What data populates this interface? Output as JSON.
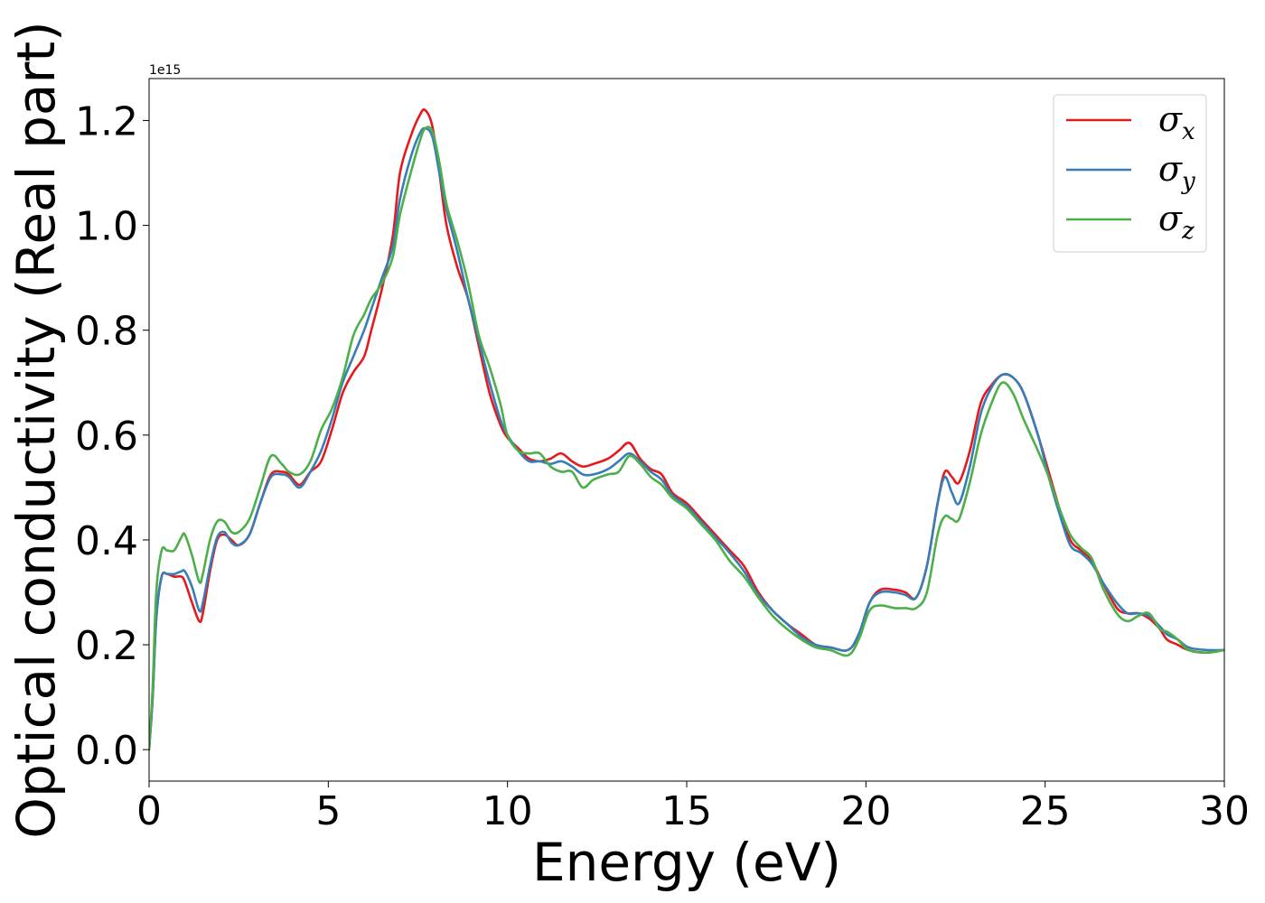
{
  "chart_data": {
    "type": "line",
    "title": "",
    "xlabel": "Energy (eV)",
    "ylabel": "Optical conductivity (Real part)",
    "y_offset_text": "1e15",
    "xlim": [
      0,
      30
    ],
    "ylim": [
      -0.06,
      1.28
    ],
    "xticks": [
      0,
      5,
      10,
      15,
      20,
      25,
      30
    ],
    "xtick_labels": [
      "0",
      "5",
      "10",
      "15",
      "20",
      "25",
      "30"
    ],
    "yticks": [
      0.0,
      0.2,
      0.4,
      0.6,
      0.8,
      1.0,
      1.2
    ],
    "ytick_labels": [
      "0.0",
      "0.2",
      "0.4",
      "0.6",
      "0.8",
      "1.0",
      "1.2"
    ],
    "grid": false,
    "legend": "top-right",
    "series": [
      {
        "name": "σx",
        "label_base": "σ",
        "label_sub": "x",
        "color": "#e41a1c",
        "points": [
          [
            0,
            0
          ],
          [
            0.1,
            0.1
          ],
          [
            0.2,
            0.25
          ],
          [
            0.35,
            0.33
          ],
          [
            0.5,
            0.335
          ],
          [
            0.7,
            0.33
          ],
          [
            0.9,
            0.33
          ],
          [
            1.0,
            0.32
          ],
          [
            1.2,
            0.28
          ],
          [
            1.4,
            0.245
          ],
          [
            1.5,
            0.26
          ],
          [
            1.7,
            0.34
          ],
          [
            1.9,
            0.4
          ],
          [
            2.1,
            0.41
          ],
          [
            2.3,
            0.4
          ],
          [
            2.5,
            0.39
          ],
          [
            2.8,
            0.41
          ],
          [
            3.1,
            0.47
          ],
          [
            3.4,
            0.525
          ],
          [
            3.7,
            0.53
          ],
          [
            3.9,
            0.525
          ],
          [
            4.2,
            0.505
          ],
          [
            4.5,
            0.53
          ],
          [
            4.8,
            0.55
          ],
          [
            5.1,
            0.61
          ],
          [
            5.4,
            0.68
          ],
          [
            5.7,
            0.72
          ],
          [
            6.0,
            0.75
          ],
          [
            6.2,
            0.8
          ],
          [
            6.5,
            0.88
          ],
          [
            6.8,
            0.98
          ],
          [
            7.0,
            1.1
          ],
          [
            7.3,
            1.17
          ],
          [
            7.55,
            1.21
          ],
          [
            7.7,
            1.22
          ],
          [
            7.9,
            1.19
          ],
          [
            8.1,
            1.1
          ],
          [
            8.3,
            1.0
          ],
          [
            8.6,
            0.92
          ],
          [
            8.9,
            0.86
          ],
          [
            9.2,
            0.77
          ],
          [
            9.5,
            0.68
          ],
          [
            9.8,
            0.62
          ],
          [
            10.0,
            0.595
          ],
          [
            10.3,
            0.575
          ],
          [
            10.6,
            0.555
          ],
          [
            10.9,
            0.55
          ],
          [
            11.2,
            0.555
          ],
          [
            11.5,
            0.565
          ],
          [
            11.8,
            0.55
          ],
          [
            12.1,
            0.54
          ],
          [
            12.4,
            0.545
          ],
          [
            12.8,
            0.555
          ],
          [
            13.1,
            0.57
          ],
          [
            13.4,
            0.585
          ],
          [
            13.7,
            0.555
          ],
          [
            14.0,
            0.535
          ],
          [
            14.3,
            0.525
          ],
          [
            14.6,
            0.49
          ],
          [
            15.0,
            0.47
          ],
          [
            15.4,
            0.44
          ],
          [
            15.8,
            0.41
          ],
          [
            16.2,
            0.38
          ],
          [
            16.6,
            0.35
          ],
          [
            17.0,
            0.3
          ],
          [
            17.4,
            0.265
          ],
          [
            17.8,
            0.24
          ],
          [
            18.2,
            0.22
          ],
          [
            18.6,
            0.2
          ],
          [
            19.0,
            0.195
          ],
          [
            19.5,
            0.19
          ],
          [
            19.8,
            0.22
          ],
          [
            20.1,
            0.28
          ],
          [
            20.4,
            0.305
          ],
          [
            20.8,
            0.305
          ],
          [
            21.1,
            0.3
          ],
          [
            21.4,
            0.29
          ],
          [
            21.7,
            0.35
          ],
          [
            22.0,
            0.47
          ],
          [
            22.2,
            0.53
          ],
          [
            22.4,
            0.52
          ],
          [
            22.6,
            0.51
          ],
          [
            22.9,
            0.57
          ],
          [
            23.2,
            0.66
          ],
          [
            23.5,
            0.695
          ],
          [
            23.8,
            0.715
          ],
          [
            24.1,
            0.71
          ],
          [
            24.4,
            0.68
          ],
          [
            24.8,
            0.6
          ],
          [
            25.1,
            0.53
          ],
          [
            25.4,
            0.46
          ],
          [
            25.7,
            0.4
          ],
          [
            26.0,
            0.38
          ],
          [
            26.3,
            0.36
          ],
          [
            26.6,
            0.32
          ],
          [
            27.0,
            0.27
          ],
          [
            27.3,
            0.26
          ],
          [
            27.6,
            0.26
          ],
          [
            27.9,
            0.25
          ],
          [
            28.2,
            0.23
          ],
          [
            28.4,
            0.21
          ],
          [
            28.7,
            0.2
          ],
          [
            29.0,
            0.19
          ],
          [
            29.5,
            0.185
          ],
          [
            30,
            0.19
          ]
        ]
      },
      {
        "name": "σy",
        "label_base": "σ",
        "label_sub": "y",
        "color": "#377eb8",
        "points": [
          [
            0,
            0
          ],
          [
            0.1,
            0.1
          ],
          [
            0.2,
            0.25
          ],
          [
            0.35,
            0.33
          ],
          [
            0.5,
            0.335
          ],
          [
            0.7,
            0.335
          ],
          [
            0.9,
            0.34
          ],
          [
            1.0,
            0.34
          ],
          [
            1.2,
            0.31
          ],
          [
            1.4,
            0.265
          ],
          [
            1.5,
            0.28
          ],
          [
            1.7,
            0.35
          ],
          [
            1.9,
            0.405
          ],
          [
            2.1,
            0.415
          ],
          [
            2.3,
            0.395
          ],
          [
            2.5,
            0.39
          ],
          [
            2.8,
            0.41
          ],
          [
            3.1,
            0.47
          ],
          [
            3.4,
            0.52
          ],
          [
            3.7,
            0.525
          ],
          [
            3.9,
            0.52
          ],
          [
            4.2,
            0.5
          ],
          [
            4.5,
            0.53
          ],
          [
            4.8,
            0.57
          ],
          [
            5.1,
            0.63
          ],
          [
            5.4,
            0.7
          ],
          [
            5.7,
            0.75
          ],
          [
            6.0,
            0.8
          ],
          [
            6.2,
            0.84
          ],
          [
            6.5,
            0.9
          ],
          [
            6.8,
            0.96
          ],
          [
            7.0,
            1.05
          ],
          [
            7.3,
            1.13
          ],
          [
            7.55,
            1.175
          ],
          [
            7.7,
            1.185
          ],
          [
            7.9,
            1.17
          ],
          [
            8.1,
            1.1
          ],
          [
            8.3,
            1.03
          ],
          [
            8.6,
            0.95
          ],
          [
            8.9,
            0.86
          ],
          [
            9.2,
            0.78
          ],
          [
            9.5,
            0.7
          ],
          [
            9.8,
            0.63
          ],
          [
            10.0,
            0.6
          ],
          [
            10.3,
            0.57
          ],
          [
            10.6,
            0.55
          ],
          [
            10.9,
            0.55
          ],
          [
            11.2,
            0.545
          ],
          [
            11.5,
            0.55
          ],
          [
            11.8,
            0.54
          ],
          [
            12.1,
            0.525
          ],
          [
            12.4,
            0.525
          ],
          [
            12.8,
            0.535
          ],
          [
            13.1,
            0.55
          ],
          [
            13.4,
            0.565
          ],
          [
            13.7,
            0.55
          ],
          [
            14.0,
            0.53
          ],
          [
            14.3,
            0.515
          ],
          [
            14.6,
            0.485
          ],
          [
            15.0,
            0.465
          ],
          [
            15.4,
            0.435
          ],
          [
            15.8,
            0.405
          ],
          [
            16.2,
            0.375
          ],
          [
            16.6,
            0.34
          ],
          [
            17.0,
            0.295
          ],
          [
            17.4,
            0.265
          ],
          [
            17.8,
            0.24
          ],
          [
            18.2,
            0.215
          ],
          [
            18.6,
            0.2
          ],
          [
            19.0,
            0.195
          ],
          [
            19.5,
            0.19
          ],
          [
            19.8,
            0.22
          ],
          [
            20.1,
            0.28
          ],
          [
            20.4,
            0.3
          ],
          [
            20.8,
            0.3
          ],
          [
            21.1,
            0.295
          ],
          [
            21.4,
            0.29
          ],
          [
            21.7,
            0.35
          ],
          [
            22.0,
            0.47
          ],
          [
            22.2,
            0.52
          ],
          [
            22.4,
            0.49
          ],
          [
            22.6,
            0.47
          ],
          [
            22.9,
            0.54
          ],
          [
            23.2,
            0.64
          ],
          [
            23.5,
            0.69
          ],
          [
            23.8,
            0.715
          ],
          [
            24.1,
            0.71
          ],
          [
            24.4,
            0.68
          ],
          [
            24.8,
            0.6
          ],
          [
            25.1,
            0.52
          ],
          [
            25.4,
            0.45
          ],
          [
            25.7,
            0.39
          ],
          [
            26.0,
            0.375
          ],
          [
            26.3,
            0.355
          ],
          [
            26.6,
            0.32
          ],
          [
            27.0,
            0.28
          ],
          [
            27.3,
            0.26
          ],
          [
            27.6,
            0.26
          ],
          [
            27.9,
            0.255
          ],
          [
            28.2,
            0.235
          ],
          [
            28.4,
            0.22
          ],
          [
            28.7,
            0.21
          ],
          [
            29.0,
            0.195
          ],
          [
            29.5,
            0.19
          ],
          [
            30,
            0.19
          ]
        ]
      },
      {
        "name": "σz",
        "label_base": "σ",
        "label_sub": "z",
        "color": "#4daf4a",
        "points": [
          [
            0,
            0
          ],
          [
            0.1,
            0.12
          ],
          [
            0.2,
            0.3
          ],
          [
            0.35,
            0.38
          ],
          [
            0.5,
            0.38
          ],
          [
            0.7,
            0.38
          ],
          [
            0.9,
            0.405
          ],
          [
            1.0,
            0.41
          ],
          [
            1.2,
            0.37
          ],
          [
            1.4,
            0.32
          ],
          [
            1.5,
            0.335
          ],
          [
            1.7,
            0.4
          ],
          [
            1.9,
            0.435
          ],
          [
            2.1,
            0.435
          ],
          [
            2.3,
            0.415
          ],
          [
            2.5,
            0.415
          ],
          [
            2.8,
            0.44
          ],
          [
            3.1,
            0.5
          ],
          [
            3.4,
            0.56
          ],
          [
            3.7,
            0.545
          ],
          [
            3.9,
            0.53
          ],
          [
            4.2,
            0.525
          ],
          [
            4.5,
            0.55
          ],
          [
            4.8,
            0.61
          ],
          [
            5.1,
            0.65
          ],
          [
            5.4,
            0.71
          ],
          [
            5.7,
            0.79
          ],
          [
            6.0,
            0.83
          ],
          [
            6.2,
            0.86
          ],
          [
            6.5,
            0.89
          ],
          [
            6.8,
            0.94
          ],
          [
            7.0,
            1.02
          ],
          [
            7.3,
            1.1
          ],
          [
            7.55,
            1.16
          ],
          [
            7.7,
            1.185
          ],
          [
            7.9,
            1.18
          ],
          [
            8.1,
            1.12
          ],
          [
            8.3,
            1.04
          ],
          [
            8.6,
            0.97
          ],
          [
            8.9,
            0.89
          ],
          [
            9.2,
            0.79
          ],
          [
            9.5,
            0.73
          ],
          [
            9.8,
            0.66
          ],
          [
            10.0,
            0.6
          ],
          [
            10.3,
            0.57
          ],
          [
            10.6,
            0.565
          ],
          [
            10.9,
            0.565
          ],
          [
            11.2,
            0.54
          ],
          [
            11.5,
            0.53
          ],
          [
            11.8,
            0.53
          ],
          [
            12.1,
            0.5
          ],
          [
            12.4,
            0.515
          ],
          [
            12.8,
            0.525
          ],
          [
            13.1,
            0.53
          ],
          [
            13.4,
            0.56
          ],
          [
            13.7,
            0.545
          ],
          [
            14.0,
            0.52
          ],
          [
            14.3,
            0.505
          ],
          [
            14.6,
            0.48
          ],
          [
            15.0,
            0.46
          ],
          [
            15.4,
            0.43
          ],
          [
            15.8,
            0.4
          ],
          [
            16.2,
            0.36
          ],
          [
            16.6,
            0.33
          ],
          [
            17.0,
            0.29
          ],
          [
            17.4,
            0.255
          ],
          [
            17.8,
            0.23
          ],
          [
            18.2,
            0.21
          ],
          [
            18.6,
            0.195
          ],
          [
            19.0,
            0.19
          ],
          [
            19.5,
            0.18
          ],
          [
            19.8,
            0.21
          ],
          [
            20.1,
            0.265
          ],
          [
            20.4,
            0.275
          ],
          [
            20.8,
            0.27
          ],
          [
            21.1,
            0.27
          ],
          [
            21.4,
            0.27
          ],
          [
            21.7,
            0.3
          ],
          [
            22.0,
            0.41
          ],
          [
            22.2,
            0.445
          ],
          [
            22.4,
            0.44
          ],
          [
            22.6,
            0.44
          ],
          [
            22.9,
            0.51
          ],
          [
            23.2,
            0.6
          ],
          [
            23.5,
            0.66
          ],
          [
            23.8,
            0.7
          ],
          [
            24.1,
            0.68
          ],
          [
            24.4,
            0.63
          ],
          [
            24.8,
            0.57
          ],
          [
            25.1,
            0.52
          ],
          [
            25.4,
            0.46
          ],
          [
            25.7,
            0.41
          ],
          [
            26.0,
            0.385
          ],
          [
            26.3,
            0.365
          ],
          [
            26.6,
            0.31
          ],
          [
            27.0,
            0.26
          ],
          [
            27.3,
            0.245
          ],
          [
            27.6,
            0.255
          ],
          [
            27.9,
            0.26
          ],
          [
            28.2,
            0.23
          ],
          [
            28.4,
            0.225
          ],
          [
            28.7,
            0.21
          ],
          [
            29.0,
            0.19
          ],
          [
            29.5,
            0.185
          ],
          [
            30,
            0.19
          ]
        ]
      }
    ]
  }
}
